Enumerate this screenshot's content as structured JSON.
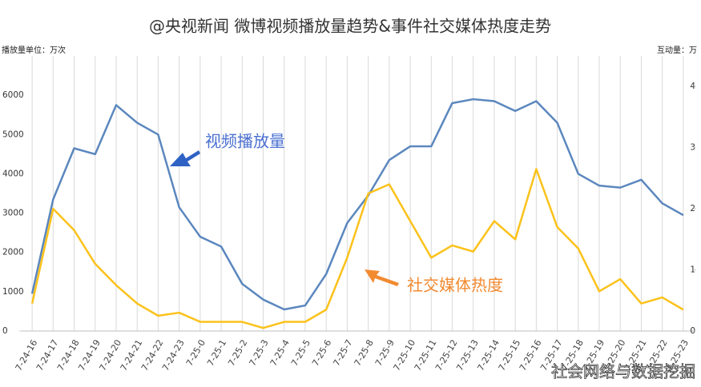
{
  "chart_data": {
    "type": "line",
    "title": "@央视新闻 微博视频播放量趋势&事件社交媒体热度走势",
    "y_label": "播放量单位：万次",
    "y2_label": "互动量：万",
    "annotations": [
      "视频播放量",
      "社交媒体热度"
    ],
    "watermark": "社会网络与数据挖掘",
    "categories": [
      "7-24-16",
      "7-24-17",
      "7-24-18",
      "7-24-19",
      "7-24-20",
      "7-24-21",
      "7-24-22",
      "7-24-23",
      "7-25-0",
      "7-25-1",
      "7-25-2",
      "7-25-3",
      "7-25-4",
      "7-25-5",
      "7-25-6",
      "7-25-7",
      "7-25-8",
      "7-25-9",
      "7-25-10",
      "7-25-11",
      "7-25-12",
      "7-25-13",
      "7-25-14",
      "7-25-15",
      "7-25-16",
      "7-25-17",
      "7-25-18",
      "7-25-19",
      "7-25-20",
      "7-25-21",
      "7-25-22",
      "7-25-23"
    ],
    "series": [
      {
        "name": "视频播放量",
        "color": "#5b87be",
        "axis": "y",
        "values": [
          950,
          3350,
          4650,
          4500,
          5750,
          5300,
          5000,
          3150,
          2400,
          2150,
          1200,
          800,
          550,
          650,
          1450,
          2750,
          3450,
          4350,
          4700,
          4700,
          5800,
          5900,
          5850,
          5600,
          5850,
          5300,
          4000,
          3700,
          3650,
          3850,
          3250,
          2950
        ]
      },
      {
        "name": "社交媒体热度",
        "color": "#fbc21b",
        "axis": "y2",
        "values": [
          0.45,
          2.0,
          1.65,
          1.1,
          0.75,
          0.45,
          0.25,
          0.3,
          0.15,
          0.15,
          0.15,
          0.05,
          0.15,
          0.15,
          0.35,
          1.2,
          2.25,
          2.4,
          1.8,
          1.2,
          1.4,
          1.3,
          1.8,
          1.5,
          2.65,
          1.7,
          1.35,
          0.65,
          0.85,
          0.45,
          0.55,
          0.35
        ]
      }
    ],
    "ylim": [
      0,
      7000
    ],
    "yticks": [
      0,
      1000,
      2000,
      3000,
      4000,
      5000,
      6000
    ],
    "y2lim": [
      0,
      4.5
    ],
    "y2ticks": [
      0,
      1,
      2,
      3,
      4
    ],
    "grid": true
  }
}
